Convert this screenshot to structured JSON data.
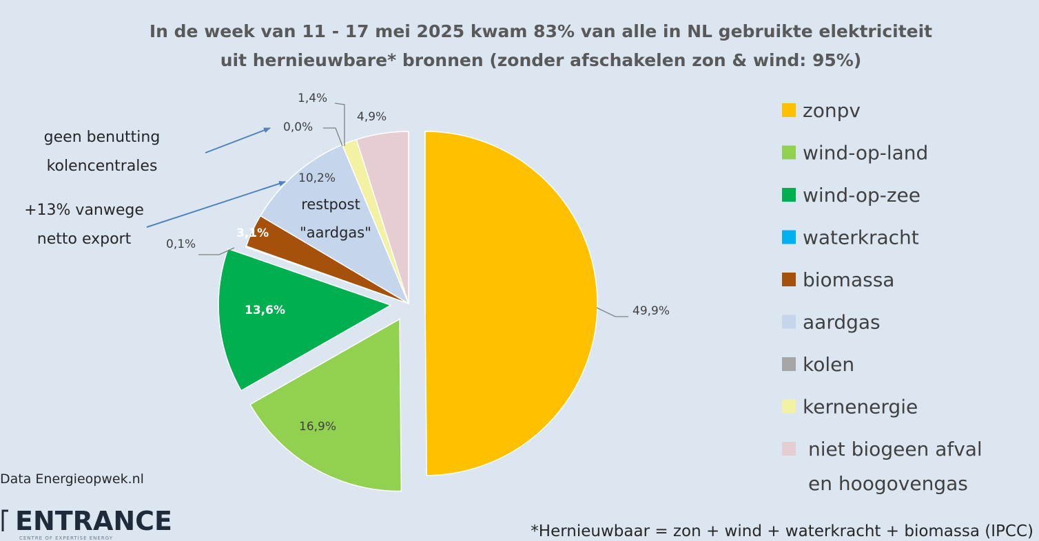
{
  "chart_data": {
    "type": "pie",
    "title": "In de week van 11 - 17 mei 2025 kwam 83% van alle in NL gebruikte elektriciteit",
    "subtitle": "uit hernieuwbare* bronnen  (zonder afschakelen zon & wind: 95%)",
    "legend_position": "right",
    "slices": [
      {
        "name": "zonpv",
        "value": 49.9,
        "label": "49,9%",
        "color": "#ffc000"
      },
      {
        "name": "wind-op-land",
        "value": 16.9,
        "label": "16,9%",
        "color": "#92d050"
      },
      {
        "name": "wind-op-zee",
        "value": 13.6,
        "label": "13,6%",
        "color": "#00b050"
      },
      {
        "name": "waterkracht",
        "value": 0.1,
        "label": "0,1%",
        "color": "#00b0f0"
      },
      {
        "name": "biomassa",
        "value": 3.1,
        "label": "3,1%",
        "color": "#a5510b"
      },
      {
        "name": "aardgas",
        "value": 10.2,
        "label": "10,2%",
        "color": "#c5d6ec"
      },
      {
        "name": "kolen",
        "value": 0.0,
        "label": "0,0%",
        "color": "#a6a6a6"
      },
      {
        "name": "kernenergie",
        "value": 1.4,
        "label": "1,4%",
        "color": "#f2f2a2"
      },
      {
        "name": "niet biogeen afval en hoogovengas",
        "value": 4.9,
        "label": "4,9%",
        "color": "#e6cdd1"
      }
    ],
    "legend": [
      {
        "name": "zonpv",
        "color": "#ffc000"
      },
      {
        "name": "wind-op-land",
        "color": "#92d050"
      },
      {
        "name": "wind-op-zee",
        "color": "#00b050"
      },
      {
        "name": "waterkracht",
        "color": "#00b0f0"
      },
      {
        "name": "biomassa",
        "color": "#a5510b"
      },
      {
        "name": "aardgas",
        "color": "#c5d6ec"
      },
      {
        "name": "kolen",
        "color": "#a6a6a6"
      },
      {
        "name": "kernenergie",
        "color": "#f2f2a2"
      },
      {
        "name": "niet biogeen afval",
        "name2": "en hoogovengas",
        "color": "#e6cdd1"
      }
    ],
    "annotations": {
      "restpost_line1": "restpost",
      "restpost_line2": "\"aardgas\"",
      "coal_note_line1": "geen  benutting",
      "coal_note_line2": "kolencentrales",
      "export_note_line1": "+13% vanwege",
      "export_note_line2": "netto export"
    },
    "footnote": "*Hernieuwbaar = zon + wind + waterkracht + biomassa (IPCC)",
    "source": "Data Energieopwek.nl",
    "logo": "ENTRANCE",
    "logo_sub": "CENTRE OF EXPERTISE ENERGY"
  },
  "colors": {
    "background": "#dce6f1",
    "arrow": "#4f81bd",
    "leader": "#7f7f7f"
  }
}
